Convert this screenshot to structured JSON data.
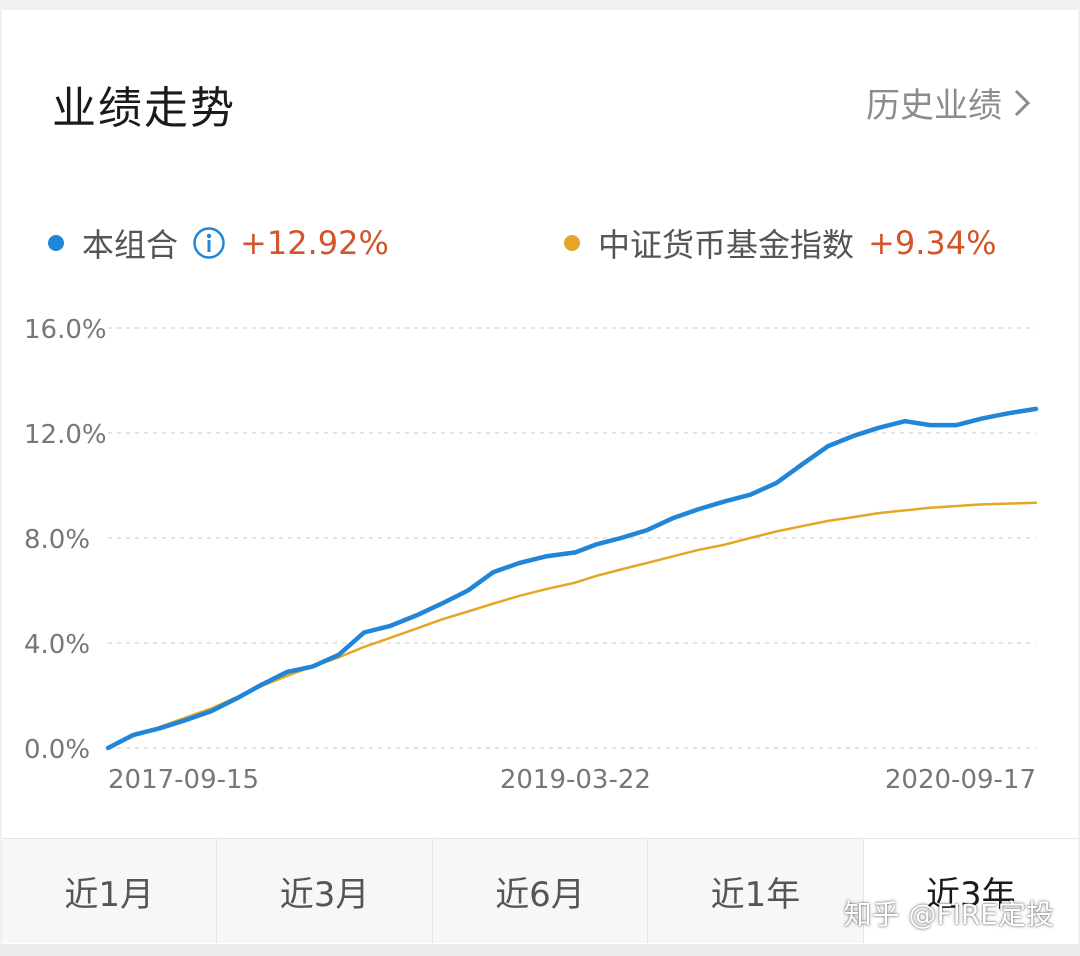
{
  "header": {
    "title": "业绩走势",
    "history_link": "历史业绩"
  },
  "legend": [
    {
      "name": "本组合",
      "value": "+12.92%",
      "color": "#2186d8",
      "icon": "info-icon"
    },
    {
      "name": "中证货币基金指数",
      "value": "+9.34%",
      "color": "#e5a625"
    }
  ],
  "chart_data": {
    "type": "line",
    "title": "",
    "xlabel": "",
    "ylabel": "",
    "x_ticks": [
      "2017-09-15",
      "2019-03-22",
      "2020-09-17"
    ],
    "y_ticks": [
      "0.0%",
      "4.0%",
      "8.0%",
      "12.0%",
      "16.0%"
    ],
    "ylim": [
      0,
      16
    ],
    "grid": true,
    "x": [
      "2017-09-15",
      "2017-10-15",
      "2017-11-15",
      "2017-12-15",
      "2018-01-15",
      "2018-02-15",
      "2018-03-15",
      "2018-04-15",
      "2018-05-15",
      "2018-06-15",
      "2018-07-15",
      "2018-08-15",
      "2018-09-15",
      "2018-10-15",
      "2018-11-15",
      "2018-12-15",
      "2019-01-15",
      "2019-02-15",
      "2019-03-22",
      "2019-04-15",
      "2019-05-15",
      "2019-06-15",
      "2019-07-15",
      "2019-08-15",
      "2019-09-15",
      "2019-10-15",
      "2019-11-15",
      "2019-12-15",
      "2020-01-15",
      "2020-02-15",
      "2020-03-15",
      "2020-04-15",
      "2020-05-15",
      "2020-06-15",
      "2020-07-15",
      "2020-08-15",
      "2020-09-17"
    ],
    "series": [
      {
        "name": "本组合",
        "color": "#2186d8",
        "values": [
          0.0,
          0.5,
          0.75,
          1.05,
          1.4,
          1.9,
          2.4,
          2.9,
          3.1,
          3.55,
          4.4,
          4.65,
          5.05,
          5.5,
          6.0,
          6.7,
          7.05,
          7.3,
          7.45,
          7.75,
          8.0,
          8.3,
          8.75,
          9.1,
          9.4,
          9.65,
          10.1,
          10.8,
          11.5,
          11.9,
          12.2,
          12.45,
          12.3,
          12.3,
          12.55,
          12.75,
          12.92
        ]
      },
      {
        "name": "中证货币基金指数",
        "color": "#e5a625",
        "values": [
          0.0,
          0.45,
          0.8,
          1.15,
          1.5,
          1.95,
          2.35,
          2.75,
          3.1,
          3.45,
          3.85,
          4.2,
          4.55,
          4.9,
          5.2,
          5.5,
          5.8,
          6.05,
          6.3,
          6.55,
          6.8,
          7.05,
          7.3,
          7.55,
          7.75,
          8.0,
          8.25,
          8.45,
          8.65,
          8.8,
          8.95,
          9.05,
          9.15,
          9.22,
          9.28,
          9.31,
          9.34
        ]
      }
    ]
  },
  "tabs": [
    {
      "label": "近1月",
      "active": false
    },
    {
      "label": "近3月",
      "active": false
    },
    {
      "label": "近6月",
      "active": false
    },
    {
      "label": "近1年",
      "active": false
    },
    {
      "label": "近3年",
      "active": true
    }
  ],
  "watermark": "知乎 @FIRE定投"
}
